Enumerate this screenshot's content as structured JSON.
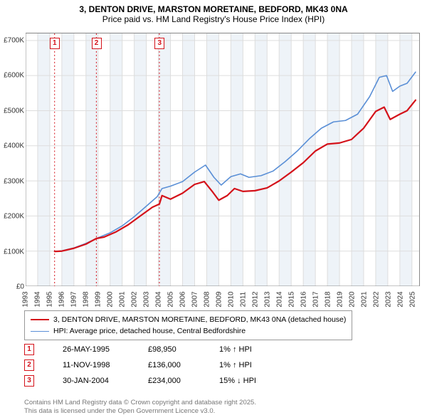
{
  "title_line1": "3, DENTON DRIVE, MARSTON MORETAINE, BEDFORD, MK43 0NA",
  "title_line2": "Price paid vs. HM Land Registry's House Price Index (HPI)",
  "chart": {
    "type": "line",
    "background_color": "#ffffff",
    "grid_color": "#dddddd",
    "alt_band_color": "#eef3f8",
    "axis_color": "#888888",
    "x_years": [
      1993,
      1994,
      1995,
      1996,
      1997,
      1998,
      1999,
      2000,
      2001,
      2002,
      2003,
      2004,
      2005,
      2006,
      2007,
      2008,
      2009,
      2010,
      2011,
      2012,
      2013,
      2014,
      2015,
      2016,
      2017,
      2018,
      2019,
      2020,
      2021,
      2022,
      2023,
      2024,
      2025
    ],
    "x_min": 1993,
    "x_max": 2025.6,
    "y_min": 0,
    "y_max": 720000,
    "y_ticks": [
      0,
      100000,
      200000,
      300000,
      400000,
      500000,
      600000,
      700000
    ],
    "y_tick_labels": [
      "£0",
      "£100K",
      "£200K",
      "£300K",
      "£400K",
      "£500K",
      "£600K",
      "£700K"
    ],
    "label_fontsize": 10,
    "series": [
      {
        "name": "property",
        "color": "#d4121a",
        "line_width": 2.2,
        "points": [
          [
            1995.4,
            98950
          ],
          [
            1996,
            100000
          ],
          [
            1997,
            108000
          ],
          [
            1998,
            120000
          ],
          [
            1998.86,
            136000
          ],
          [
            1999.5,
            140000
          ],
          [
            2000.5,
            155000
          ],
          [
            2001.5,
            175000
          ],
          [
            2002.5,
            200000
          ],
          [
            2003.5,
            225000
          ],
          [
            2004.08,
            234000
          ],
          [
            2004.3,
            258000
          ],
          [
            2005,
            248000
          ],
          [
            2006,
            265000
          ],
          [
            2007,
            290000
          ],
          [
            2007.8,
            298000
          ],
          [
            2008.5,
            268000
          ],
          [
            2009,
            245000
          ],
          [
            2009.7,
            258000
          ],
          [
            2010.3,
            278000
          ],
          [
            2011,
            270000
          ],
          [
            2012,
            272000
          ],
          [
            2013,
            280000
          ],
          [
            2014,
            300000
          ],
          [
            2015,
            325000
          ],
          [
            2016,
            352000
          ],
          [
            2017,
            385000
          ],
          [
            2018,
            405000
          ],
          [
            2019,
            408000
          ],
          [
            2020,
            418000
          ],
          [
            2021,
            450000
          ],
          [
            2022,
            498000
          ],
          [
            2022.7,
            510000
          ],
          [
            2023.2,
            475000
          ],
          [
            2024,
            490000
          ],
          [
            2024.6,
            500000
          ],
          [
            2025.3,
            530000
          ]
        ]
      },
      {
        "name": "hpi",
        "color": "#5a8fd6",
        "line_width": 1.6,
        "points": [
          [
            1995.4,
            99000
          ],
          [
            1996,
            101000
          ],
          [
            1997,
            109000
          ],
          [
            1998,
            122000
          ],
          [
            1999,
            138000
          ],
          [
            2000,
            152000
          ],
          [
            2001,
            172000
          ],
          [
            2002,
            198000
          ],
          [
            2003,
            228000
          ],
          [
            2003.9,
            255000
          ],
          [
            2004.3,
            278000
          ],
          [
            2005,
            285000
          ],
          [
            2006,
            298000
          ],
          [
            2007,
            325000
          ],
          [
            2007.9,
            345000
          ],
          [
            2008.6,
            310000
          ],
          [
            2009.2,
            288000
          ],
          [
            2010,
            312000
          ],
          [
            2010.8,
            320000
          ],
          [
            2011.5,
            310000
          ],
          [
            2012.5,
            315000
          ],
          [
            2013.5,
            328000
          ],
          [
            2014.5,
            355000
          ],
          [
            2015.5,
            385000
          ],
          [
            2016.5,
            420000
          ],
          [
            2017.5,
            450000
          ],
          [
            2018.5,
            468000
          ],
          [
            2019.5,
            472000
          ],
          [
            2020.5,
            490000
          ],
          [
            2021.5,
            540000
          ],
          [
            2022.3,
            595000
          ],
          [
            2022.9,
            600000
          ],
          [
            2023.4,
            555000
          ],
          [
            2024,
            570000
          ],
          [
            2024.6,
            578000
          ],
          [
            2025.3,
            610000
          ]
        ]
      }
    ],
    "transaction_markers": [
      {
        "n": "1",
        "x": 1995.4,
        "color": "#d4121a",
        "line_style": "dotted"
      },
      {
        "n": "2",
        "x": 1998.86,
        "color": "#d4121a",
        "line_style": "dotted"
      },
      {
        "n": "3",
        "x": 2004.08,
        "color": "#d4121a",
        "line_style": "dotted"
      }
    ]
  },
  "legend": {
    "items": [
      {
        "color": "#d4121a",
        "width": 2.2,
        "label": "3, DENTON DRIVE, MARSTON MORETAINE, BEDFORD, MK43 0NA (detached house)"
      },
      {
        "color": "#5a8fd6",
        "width": 1.6,
        "label": "HPI: Average price, detached house, Central Bedfordshire"
      }
    ]
  },
  "transactions": [
    {
      "n": "1",
      "color": "#d4121a",
      "date": "26-MAY-1995",
      "price": "£98,950",
      "change_pct": "1%",
      "change_dir": "↑",
      "change_label": "HPI"
    },
    {
      "n": "2",
      "color": "#d4121a",
      "date": "11-NOV-1998",
      "price": "£136,000",
      "change_pct": "1%",
      "change_dir": "↑",
      "change_label": "HPI"
    },
    {
      "n": "3",
      "color": "#d4121a",
      "date": "30-JAN-2004",
      "price": "£234,000",
      "change_pct": "15%",
      "change_dir": "↓",
      "change_label": "HPI"
    }
  ],
  "footer_line1": "Contains HM Land Registry data © Crown copyright and database right 2025.",
  "footer_line2": "This data is licensed under the Open Government Licence v3.0."
}
